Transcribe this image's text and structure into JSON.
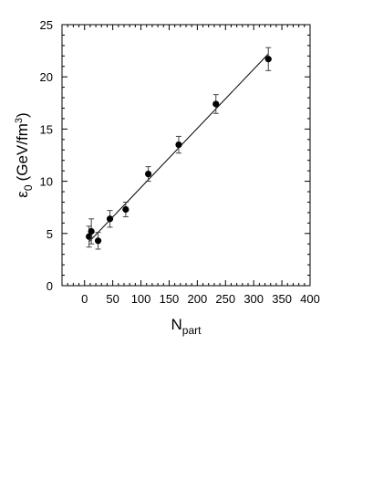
{
  "chart_data": {
    "type": "scatter",
    "title": "",
    "xlabel": "N",
    "xlabel_sub": "part",
    "ylabel": "ε",
    "ylabel_sub": "0",
    "ylabel_unit_prefix": "(GeV/fm",
    "ylabel_unit_sup": "3",
    "ylabel_unit_suffix": ")",
    "xlim": [
      -40,
      400
    ],
    "ylim": [
      0,
      25
    ],
    "xticks": [
      0,
      50,
      100,
      150,
      200,
      250,
      300,
      350,
      400
    ],
    "yticks": [
      0,
      5,
      10,
      15,
      20,
      25
    ],
    "grid": false,
    "series": [
      {
        "marker": "filled-circle",
        "color": "#000000",
        "points": [
          {
            "x": 8,
            "y": 4.7,
            "err": 1.0
          },
          {
            "x": 12,
            "y": 5.2,
            "err": 1.2
          },
          {
            "x": 24,
            "y": 4.3,
            "err": 0.8
          },
          {
            "x": 45,
            "y": 6.4,
            "err": 0.8
          },
          {
            "x": 73,
            "y": 7.3,
            "err": 0.7
          },
          {
            "x": 113,
            "y": 10.7,
            "err": 0.7
          },
          {
            "x": 167,
            "y": 13.5,
            "err": 0.8
          },
          {
            "x": 233,
            "y": 17.4,
            "err": 0.9
          },
          {
            "x": 326,
            "y": 21.7,
            "err": 1.1
          }
        ]
      }
    ],
    "fit_line": {
      "x": [
        8,
        326
      ],
      "y": [
        4.2,
        22.2
      ],
      "color": "#000000"
    }
  }
}
